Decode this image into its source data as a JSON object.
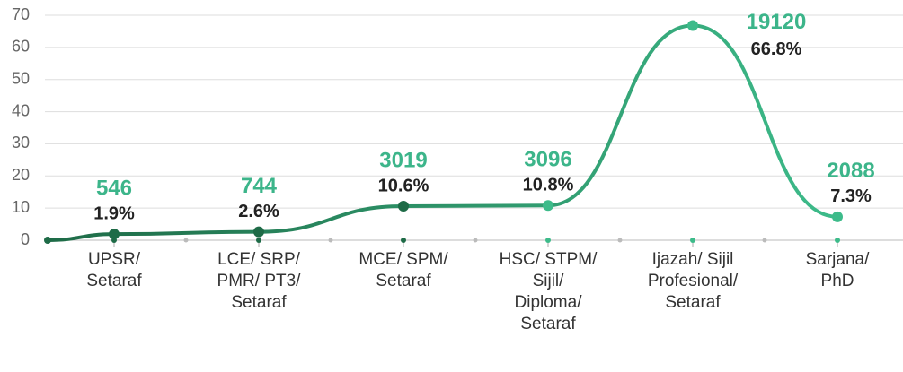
{
  "chart_data": {
    "type": "line",
    "categories": [
      null,
      "UPSR/ Setaraf",
      "LCE/ SRP/ PMR/ PT3/ Setaraf",
      "MCE/ SPM/ Setaraf",
      "HSC/ STPM/ Sijil/ Diploma/ Setaraf",
      "Ijazah/ Sijil Profesional/ Setaraf",
      "Sarjana/ PhD"
    ],
    "values": [
      0,
      1.9,
      2.6,
      10.6,
      10.8,
      66.8,
      7.3
    ],
    "value_labels": [
      null,
      "1.9%",
      "2.6%",
      "10.6%",
      "10.8%",
      "66.8%",
      "7.3%"
    ],
    "counts": [
      null,
      546,
      744,
      3019,
      3096,
      19120,
      2088
    ],
    "ylim": [
      0,
      70
    ],
    "yticks": [
      0,
      10,
      20,
      30,
      40,
      50,
      60,
      70
    ],
    "grid": true,
    "color_start": "#1e6b47",
    "color_end": "#3dbb8a",
    "count_color": "#3cb58a"
  }
}
